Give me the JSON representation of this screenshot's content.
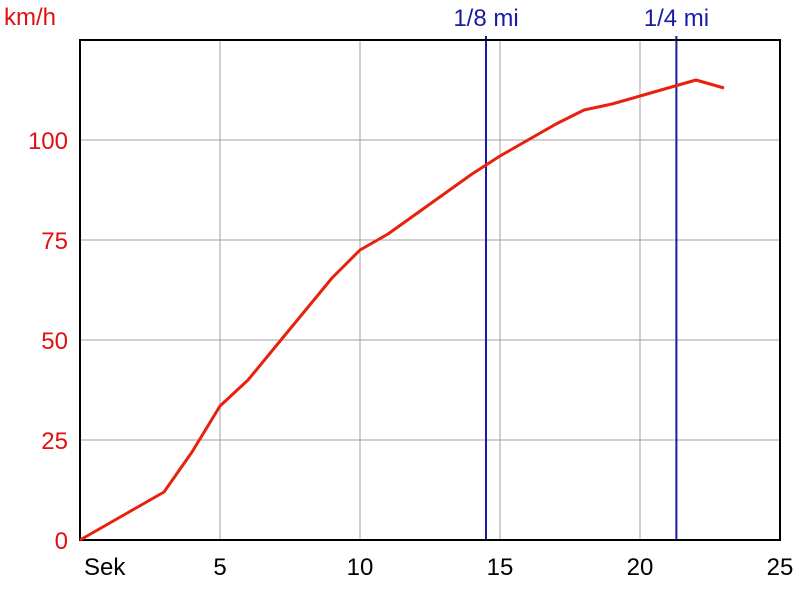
{
  "chart_data": {
    "type": "line",
    "ylabel": "km/h",
    "xlabel": "Sek",
    "xlim": [
      0,
      25
    ],
    "ylim": [
      0,
      125
    ],
    "x_ticks": [
      5,
      10,
      15,
      20,
      25
    ],
    "y_ticks": [
      0,
      25,
      50,
      75,
      100
    ],
    "grid": true,
    "series": [
      {
        "x": [
          0,
          1,
          2,
          3,
          4,
          5,
          6,
          7,
          8,
          9,
          10,
          11,
          12,
          13,
          14,
          15,
          16,
          17,
          18,
          19,
          20,
          21,
          22,
          23
        ],
        "values": [
          0,
          4,
          8,
          12,
          22,
          33.5,
          40,
          48.5,
          57,
          65.5,
          72.5,
          76.5,
          81.5,
          86.5,
          91.5,
          96,
          100,
          104,
          107.5,
          109,
          111,
          113,
          115,
          113
        ]
      }
    ],
    "markers": [
      {
        "label": "1/8 mi",
        "x": 14.5
      },
      {
        "label": "1/4 mi",
        "x": 21.3
      }
    ],
    "colors": {
      "line": "#e82010",
      "marker": "#1a1aa8",
      "grid": "#a0a0a0",
      "axis": "#000000",
      "y_text": "#e01010"
    }
  }
}
